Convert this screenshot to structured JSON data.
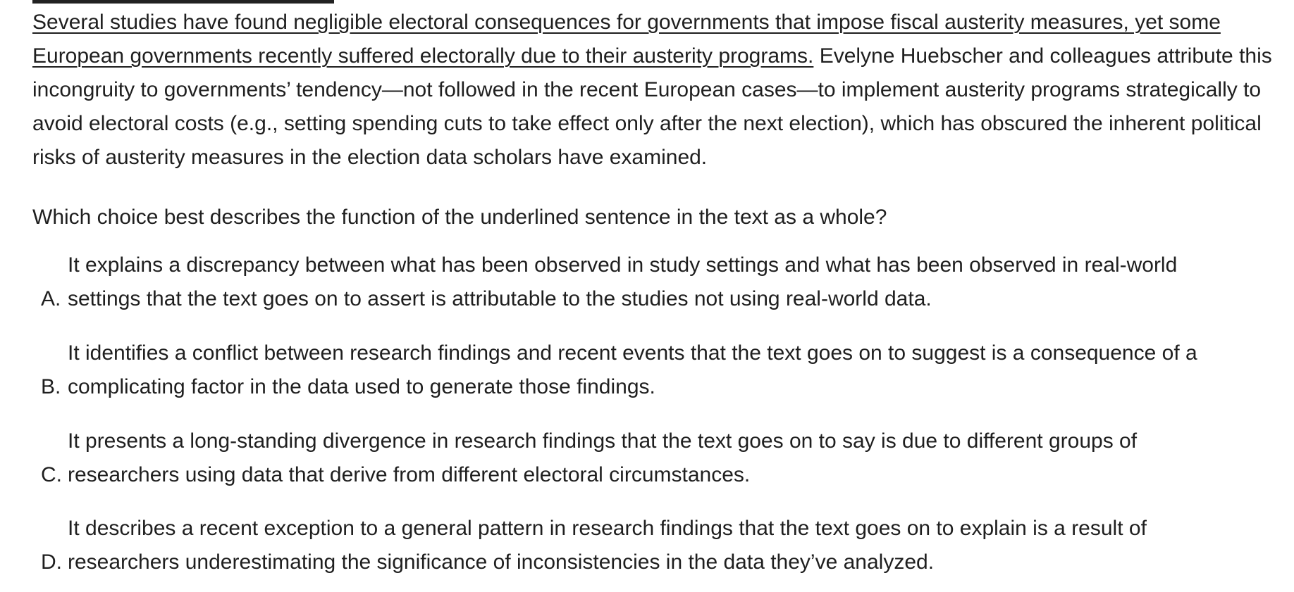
{
  "passage": {
    "underlined_sentence": "Several studies have found negligible electoral consequences for governments that impose fiscal austerity measures, yet some European governments recently suffered electorally due to their austerity programs.",
    "rest": " Evelyne Huebscher and colleagues attribute this incongruity to governments’ tendency—not followed in the recent European cases—to implement austerity programs strategically to avoid electoral costs (e.g., setting spending cuts to take effect only after the next election), which has obscured the inherent political risks of austerity measures in the election data scholars have examined."
  },
  "question": "Which choice best describes the function of the underlined sentence in the text as a whole?",
  "choices": [
    {
      "letter": "A.",
      "line1": "It explains a discrepancy between what has been observed in study settings and what has been observed in real-world",
      "line2": "settings that the text goes on to assert is attributable to the studies not using real-world data."
    },
    {
      "letter": "B.",
      "line1": "It identifies a conflict between research findings and recent events that the text goes on to suggest is a consequence of a",
      "line2": "complicating factor in the data used to generate those findings."
    },
    {
      "letter": "C.",
      "line1": "It presents a long-standing divergence in research findings that the text goes on to say is due to different groups of",
      "line2": "researchers using data that derive from different electoral circumstances."
    },
    {
      "letter": "D.",
      "line1": "It describes a recent exception to a general pattern in research findings that the text goes on to explain is a result of",
      "line2": "researchers underestimating the significance of inconsistencies in the data they’ve analyzed."
    }
  ]
}
